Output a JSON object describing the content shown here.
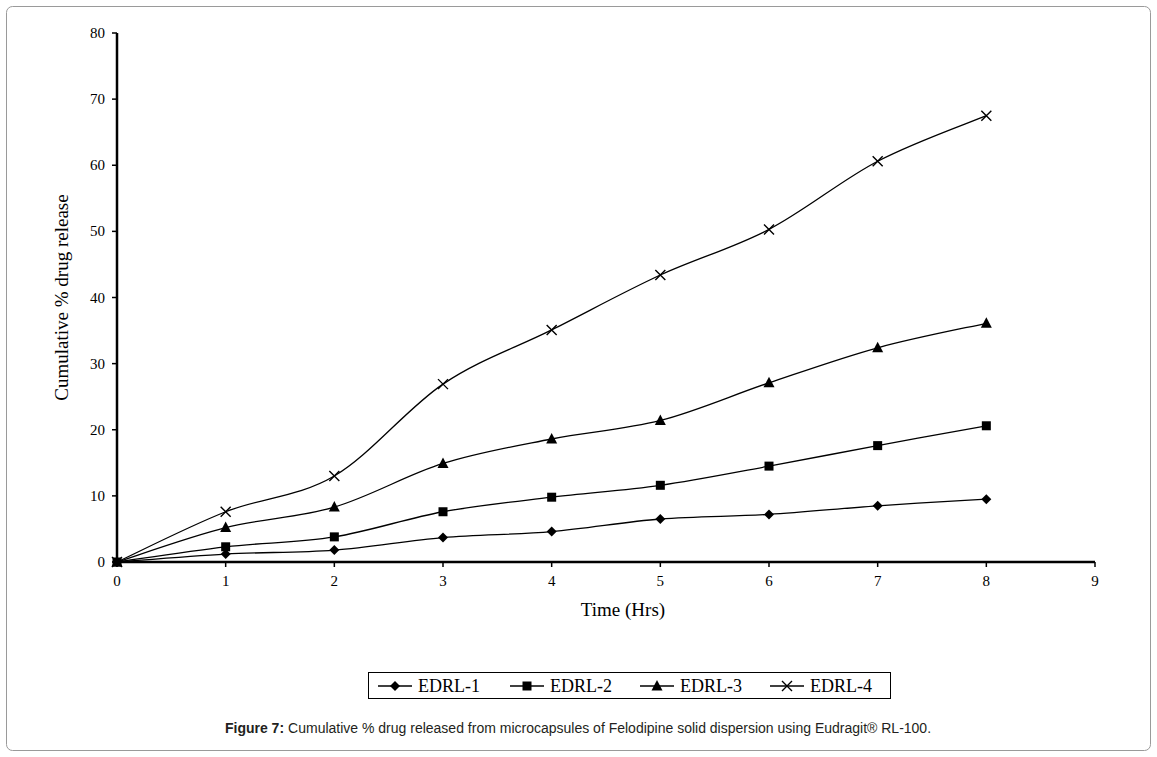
{
  "chart_data": {
    "type": "line",
    "figure_label": "Figure 7:",
    "title": "Cumulative % drug released from microcapsules of Felodipine solid dispersion using Eudragit® RL-100.",
    "x_label": "Time (Hrs)",
    "y_label": "Cumulative % drug release",
    "x": [
      0,
      1,
      2,
      3,
      4,
      5,
      6,
      7,
      8
    ],
    "xlim": [
      0,
      9
    ],
    "xticks": [
      0,
      1,
      2,
      3,
      4,
      5,
      6,
      7,
      8,
      9
    ],
    "ylim": [
      0,
      80
    ],
    "yticks": [
      0,
      10,
      20,
      30,
      40,
      50,
      60,
      70,
      80
    ],
    "grid": false,
    "legend": "bottom",
    "series": [
      {
        "name": "EDRL-1",
        "color": "#000000",
        "marker": "diamond",
        "line_style": "solid",
        "values": [
          0,
          1.2,
          1.8,
          3.7,
          4.6,
          6.5,
          7.2,
          8.5,
          9.5
        ]
      },
      {
        "name": "EDRL-2",
        "color": "#000000",
        "marker": "square",
        "line_style": "solid",
        "values": [
          0,
          2.3,
          3.8,
          7.6,
          9.8,
          11.6,
          14.5,
          17.6,
          20.6
        ]
      },
      {
        "name": "EDRL-3",
        "color": "#000000",
        "marker": "triangle",
        "line_style": "solid",
        "values": [
          0,
          5.2,
          8.3,
          14.9,
          18.6,
          21.4,
          27.1,
          32.4,
          36.1
        ]
      },
      {
        "name": "EDRL-4",
        "color": "#000000",
        "marker": "x",
        "line_style": "solid",
        "values": [
          0,
          7.6,
          13.0,
          26.9,
          35.1,
          43.4,
          50.3,
          60.6,
          67.5
        ]
      }
    ]
  }
}
